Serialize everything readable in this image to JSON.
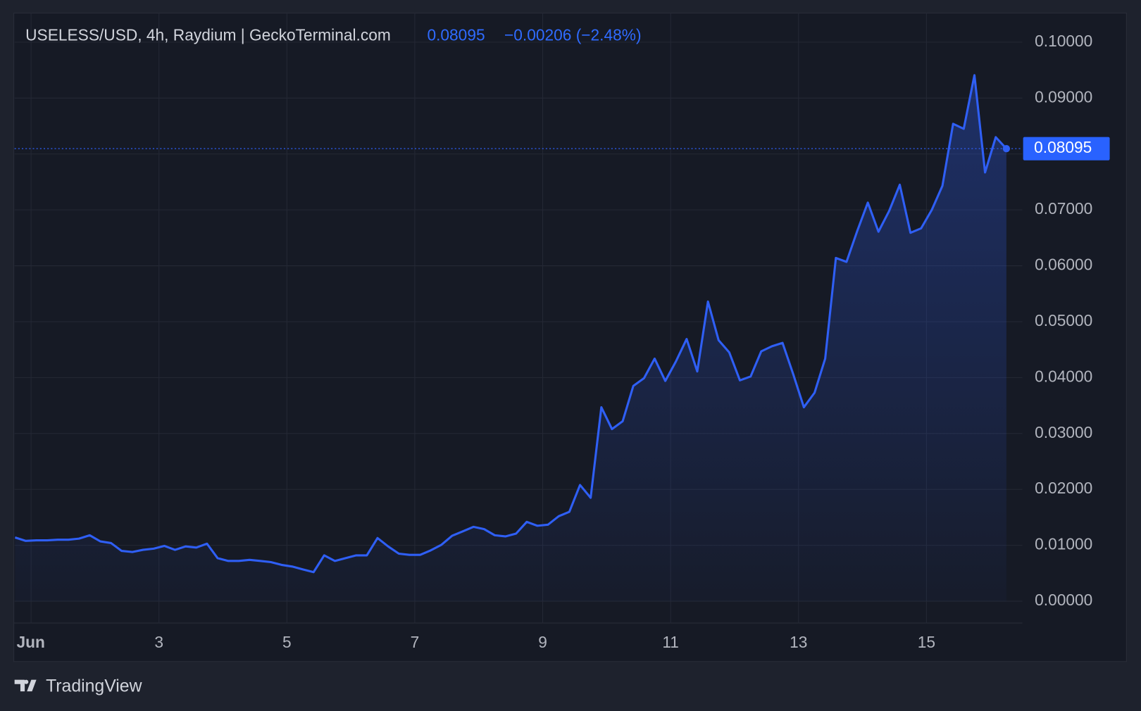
{
  "chart_data": {
    "type": "line",
    "title": "USELESS/USD, 4h, Raydium | GeckoTerminal.com",
    "change": "−0.00206 (−2.48%)",
    "color": "#2f5ff5",
    "x": [
      -6,
      -2,
      2,
      6,
      10,
      14,
      18,
      22,
      26,
      30,
      34,
      38,
      42,
      46,
      50,
      54,
      58,
      62,
      66,
      70,
      74,
      78,
      82,
      86,
      90,
      94,
      98,
      102,
      106,
      110,
      114,
      118,
      122,
      126,
      130,
      134,
      138,
      142,
      146,
      150,
      154,
      158,
      162,
      166,
      170,
      174,
      178,
      182,
      186,
      190,
      194,
      198,
      202,
      206,
      210,
      214,
      218,
      222,
      226,
      230,
      234,
      238,
      242,
      246,
      250,
      254,
      258,
      262,
      266,
      270,
      274,
      278,
      282,
      286,
      290,
      294,
      298,
      302,
      306,
      310,
      314,
      318,
      322,
      326,
      330,
      334,
      338,
      342,
      346,
      350,
      354,
      358,
      362,
      366
    ],
    "values": [
      0.0114,
      0.0108,
      0.0109,
      0.0109,
      0.011,
      0.011,
      0.0112,
      0.0118,
      0.0107,
      0.0104,
      0.009,
      0.0088,
      0.0092,
      0.0094,
      0.0099,
      0.0092,
      0.0098,
      0.0096,
      0.0103,
      0.0077,
      0.0072,
      0.0072,
      0.0074,
      0.0072,
      0.007,
      0.0065,
      0.0062,
      0.0057,
      0.0052,
      0.0082,
      0.0072,
      0.0077,
      0.0082,
      0.0082,
      0.0113,
      0.0098,
      0.0085,
      0.0083,
      0.0083,
      0.0091,
      0.0101,
      0.0117,
      0.0125,
      0.0133,
      0.0129,
      0.0118,
      0.0116,
      0.0121,
      0.0142,
      0.0135,
      0.0137,
      0.0152,
      0.016,
      0.0208,
      0.0185,
      0.0347,
      0.0308,
      0.0322,
      0.0385,
      0.0399,
      0.0434,
      0.0394,
      0.0429,
      0.0469,
      0.0411,
      0.0536,
      0.0467,
      0.0445,
      0.0395,
      0.0402,
      0.0447,
      0.0456,
      0.0462,
      0.0406,
      0.0347,
      0.0373,
      0.0434,
      0.0614,
      0.0607,
      0.0662,
      0.0713,
      0.0661,
      0.0698,
      0.0745,
      0.0659,
      0.0667,
      0.07,
      0.0743,
      0.0854,
      0.0845,
      0.0941,
      0.0767,
      0.083,
      0.08095
    ],
    "xlim": [
      -6.2,
      372
    ],
    "xticks": [
      {
        "value": 0,
        "label": "Jun"
      },
      {
        "value": 48,
        "label": "3"
      },
      {
        "value": 96,
        "label": "5"
      },
      {
        "value": 144,
        "label": "7"
      },
      {
        "value": 192,
        "label": "9"
      },
      {
        "value": 240,
        "label": "11"
      },
      {
        "value": 288,
        "label": "13"
      },
      {
        "value": 336,
        "label": "15"
      }
    ],
    "ylim": [
      -0.0039,
      0.1052
    ],
    "yticks": [
      {
        "value": 0,
        "label": "0.00000"
      },
      {
        "value": 0.01,
        "label": "0.01000"
      },
      {
        "value": 0.02,
        "label": "0.02000"
      },
      {
        "value": 0.03,
        "label": "0.03000"
      },
      {
        "value": 0.04,
        "label": "0.04000"
      },
      {
        "value": 0.05,
        "label": "0.05000"
      },
      {
        "value": 0.06,
        "label": "0.06000"
      },
      {
        "value": 0.07,
        "label": "0.07000"
      },
      {
        "value": 0.08,
        "label": "0.08000"
      },
      {
        "value": 0.09,
        "label": "0.09000"
      },
      {
        "value": 0.1,
        "label": "0.10000"
      }
    ],
    "grid": true
  },
  "footer": {
    "brand": "TradingView"
  }
}
